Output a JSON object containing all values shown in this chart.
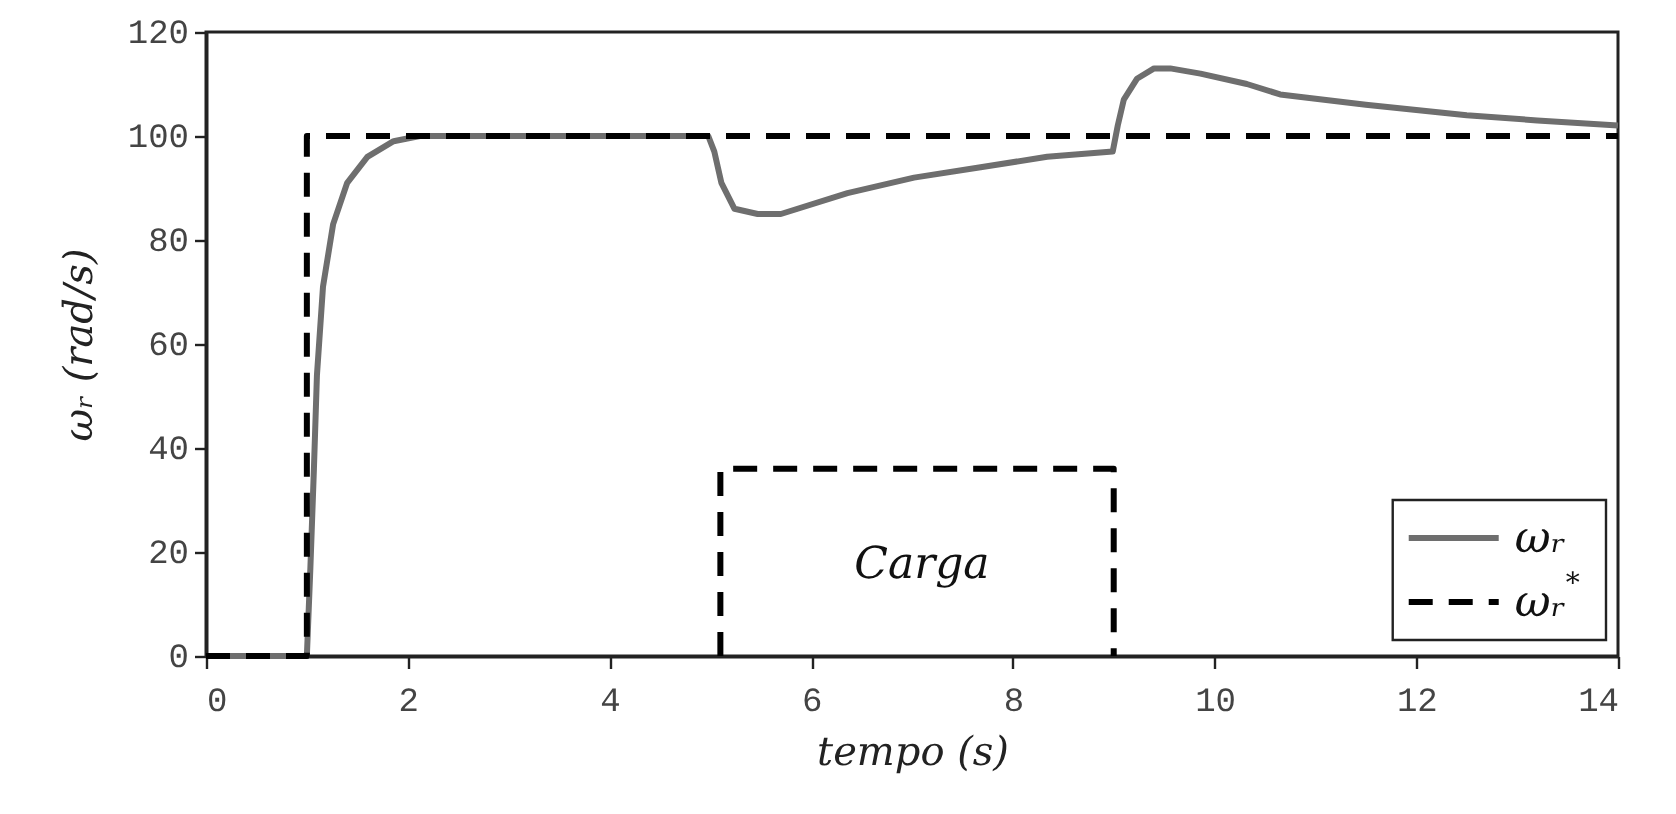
{
  "chart_data": {
    "type": "line",
    "xlabel": "tempo (s)",
    "ylabel": "ωᵣ (rad/s)",
    "xlim": [
      0,
      14
    ],
    "ylim": [
      0,
      120
    ],
    "xticks": [
      0,
      2,
      4,
      6,
      8,
      10,
      12,
      14
    ],
    "yticks": [
      0,
      20,
      40,
      60,
      80,
      100,
      120
    ],
    "grid": false,
    "legend": "bottom right",
    "series": [
      {
        "name": "ωᵣ",
        "color": "#6e6e6e",
        "line_style": "solid",
        "x": [
          0,
          1.0,
          1.035,
          1.07,
          1.1,
          1.16,
          1.26,
          1.4,
          1.6,
          1.86,
          2.12,
          2.5,
          3,
          4,
          4.98,
          5.04,
          5.11,
          5.24,
          5.47,
          5.7,
          6.36,
          7.02,
          7.68,
          8.34,
          8.99,
          9.04,
          9.1,
          9.23,
          9.4,
          9.56,
          9.86,
          10.32,
          10.65,
          11.5,
          12.5,
          13.2,
          14
        ],
        "values": [
          0,
          0,
          17,
          36,
          54,
          71,
          83,
          91,
          96,
          99,
          100,
          100,
          100,
          100,
          100,
          97,
          91,
          86,
          85,
          85,
          89,
          92,
          94,
          96,
          97,
          102,
          107,
          111,
          113,
          113,
          112,
          110,
          108,
          106,
          104,
          103,
          102
        ]
      },
      {
        "name": "ωᵣ$^{*}$",
        "color": "#000000",
        "line_style": "dashed",
        "x": [
          0,
          1,
          1,
          14
        ],
        "values": [
          0,
          0,
          100,
          100
        ]
      },
      {
        "color": "#000000",
        "line_style": "dashed",
        "type": "line",
        "x": [
          5.1,
          5.1,
          9,
          9
        ],
        "values": [
          0,
          36,
          36,
          0
        ]
      }
    ],
    "annotations": [
      "Carga"
    ]
  }
}
